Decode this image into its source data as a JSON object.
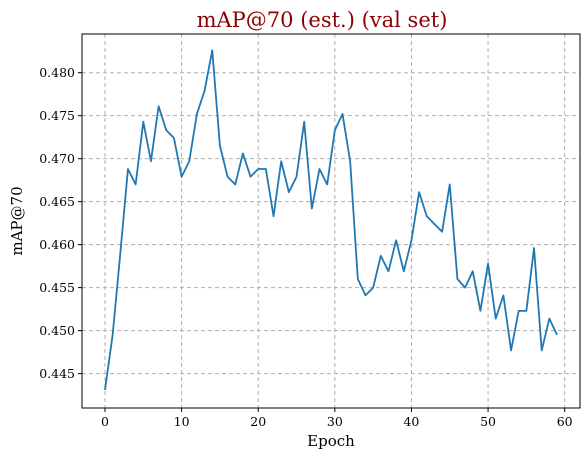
{
  "chart_data": {
    "type": "line",
    "title": "mAP@70 (est.) (val set)",
    "xlabel": "Epoch",
    "ylabel": "mAP@70",
    "xlim": [
      -3,
      62
    ],
    "ylim": [
      0.441,
      0.4845
    ],
    "xticks": [
      0,
      10,
      20,
      30,
      40,
      50,
      60
    ],
    "yticks": [
      0.445,
      0.45,
      0.455,
      0.46,
      0.465,
      0.47,
      0.475,
      0.48
    ],
    "grid": true,
    "series": [
      {
        "color": "#1f77b4",
        "x": [
          0,
          1,
          2,
          3,
          4,
          5,
          6,
          7,
          8,
          9,
          10,
          11,
          12,
          13,
          14,
          15,
          16,
          17,
          18,
          19,
          20,
          21,
          22,
          23,
          24,
          25,
          26,
          27,
          28,
          29,
          30,
          31,
          32,
          33,
          34,
          35,
          36,
          37,
          38,
          39,
          40,
          41,
          42,
          43,
          44,
          45,
          46,
          47,
          48,
          49,
          50,
          51,
          52,
          53,
          54,
          55,
          56,
          57,
          58,
          59
        ],
        "y": [
          0.4431,
          0.4495,
          0.459,
          0.4688,
          0.467,
          0.4743,
          0.4697,
          0.4761,
          0.4733,
          0.4724,
          0.4679,
          0.4697,
          0.4752,
          0.4779,
          0.4826,
          0.4715,
          0.4679,
          0.467,
          0.4706,
          0.4679,
          0.4688,
          0.4688,
          0.4633,
          0.4697,
          0.4661,
          0.4679,
          0.4743,
          0.4642,
          0.4688,
          0.467,
          0.4733,
          0.4752,
          0.4697,
          0.456,
          0.4541,
          0.455,
          0.4587,
          0.4569,
          0.4605,
          0.4569,
          0.4605,
          0.4661,
          0.4633,
          0.4624,
          0.4615,
          0.467,
          0.456,
          0.455,
          0.4569,
          0.4523,
          0.4578,
          0.4514,
          0.4541,
          0.4477,
          0.4523,
          0.4523,
          0.4596,
          0.4477,
          0.4514,
          0.4495
        ]
      }
    ]
  }
}
